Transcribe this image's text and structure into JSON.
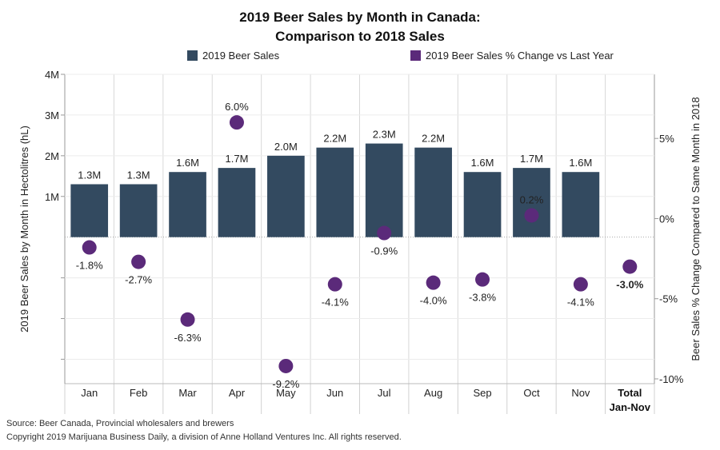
{
  "chart_data": {
    "type": "bar",
    "title": "2019 Beer Sales by Month in Canada:",
    "subtitle": "Comparison to 2018 Sales",
    "legend": [
      {
        "label": "2019 Beer Sales",
        "color": "#334a60"
      },
      {
        "label": "2019 Beer Sales % Change vs Last Year",
        "color": "#5b2a7a"
      }
    ],
    "categories": [
      "Jan",
      "Feb",
      "Mar",
      "Apr",
      "May",
      "Jun",
      "Jul",
      "Aug",
      "Sep",
      "Oct",
      "Nov",
      "Total Jan-Nov"
    ],
    "series": [
      {
        "name": "2019 Beer Sales",
        "values": [
          1.3,
          1.3,
          1.6,
          1.7,
          2.0,
          2.2,
          2.3,
          2.2,
          1.6,
          1.7,
          1.6,
          null
        ],
        "labels": [
          "1.3M",
          "1.3M",
          "1.6M",
          "1.7M",
          "2.0M",
          "2.2M",
          "2.3M",
          "2.2M",
          "1.6M",
          "1.7M",
          "1.6M",
          ""
        ],
        "axis": "left",
        "color": "#334a60"
      },
      {
        "name": "2019 Beer Sales % Change vs Last Year",
        "values": [
          -1.8,
          -2.7,
          -6.3,
          6.0,
          -9.2,
          -4.1,
          -0.9,
          -4.0,
          -3.8,
          0.2,
          -4.1,
          -3.0
        ],
        "labels": [
          "-1.8%",
          "-2.7%",
          "-6.3%",
          "6.0%",
          "-9.2%",
          "-4.1%",
          "-0.9%",
          "-4.0%",
          "-3.8%",
          "0.2%",
          "-4.1%",
          "-3.0%"
        ],
        "axis": "right",
        "color": "#5b2a7a"
      }
    ],
    "ylabel": "2019 Beer Sales by Month in Hectolitres (hL)",
    "y2label": "Beer Sales % Change Compared to Same Month in 2018",
    "ylim": [
      -3.6,
      4.0
    ],
    "yticks": [
      1,
      2,
      3,
      4
    ],
    "ytick_labels": [
      "1M",
      "2M",
      "3M",
      "4M"
    ],
    "y2lim": [
      -10.3,
      9.0
    ],
    "y2ticks": [
      -10,
      -5,
      0,
      5
    ],
    "y2tick_labels": [
      "-10%",
      "-5%",
      "0%",
      "5%"
    ],
    "grid": true
  },
  "footer": {
    "source": "Source: Beer Canada, Provincial wholesalers and brewers",
    "copyright": "Copyright 2019 Marijuana Business Daily, a division of Anne Holland Ventures Inc. All rights reserved."
  }
}
